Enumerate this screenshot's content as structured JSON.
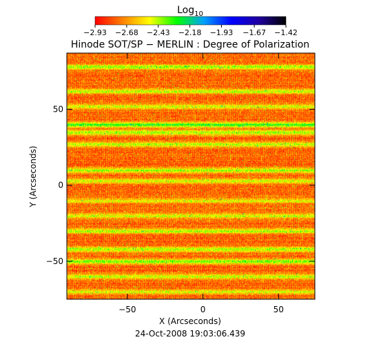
{
  "chart_data": {
    "type": "heatmap",
    "title": "Hinode SOT/SP − MERLIN : Degree of Polarization",
    "xlabel": "X (Arcseconds)",
    "ylabel": "Y (Arcseconds)",
    "xlim": [
      -90,
      74
    ],
    "ylim": [
      -75,
      87
    ],
    "x_ticks": [
      -50,
      0,
      50
    ],
    "y_ticks": [
      -50,
      0,
      50
    ],
    "x_tick_labels": [
      "−50",
      "0",
      "50"
    ],
    "y_tick_labels": [
      "−50",
      "0",
      "50"
    ],
    "footer": "24-Oct-2008 19:03:06.439",
    "grid": false,
    "colorbar": {
      "label_base": "Log",
      "label_sub": "10",
      "ticks": [
        -2.93,
        -2.68,
        -2.43,
        -2.18,
        -1.93,
        -1.67,
        -1.42
      ],
      "tick_labels": [
        "−2.93",
        "−2.68",
        "−2.43",
        "−2.18",
        "−1.93",
        "−1.67",
        "−1.42"
      ],
      "range": [
        -2.93,
        -1.42
      ],
      "colors": [
        "#ff0000",
        "#ff8000",
        "#ffff00",
        "#00ff00",
        "#00a0ff",
        "#0000ff",
        "#2000a0",
        "#000000"
      ]
    },
    "field": {
      "typical_min": -2.93,
      "typical_max": -2.2,
      "band_y_positions": [
        78,
        62,
        52,
        40,
        35,
        27,
        10,
        3,
        -10,
        -20,
        -30,
        -42,
        -50,
        -60,
        -70
      ],
      "band_strength": [
        0.55,
        0.5,
        0.45,
        0.75,
        0.55,
        0.5,
        0.55,
        0.45,
        0.4,
        0.45,
        0.5,
        0.55,
        0.6,
        0.45,
        0.4
      ]
    }
  }
}
